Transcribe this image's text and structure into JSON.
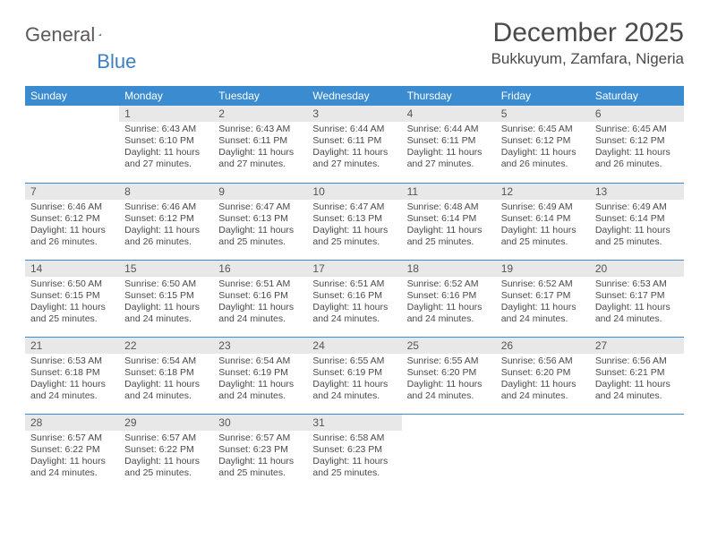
{
  "brand": {
    "part1": "General",
    "part2": "Blue"
  },
  "title": "December 2025",
  "location": "Bukkuyum, Zamfara, Nigeria",
  "colors": {
    "header_bg": "#3b8bd0",
    "header_fg": "#ffffff",
    "daynum_bg": "#e8e8e8",
    "rule": "#3b8bd0",
    "text": "#4a4a4a"
  },
  "fonts": {
    "title_size": 30,
    "location_size": 17,
    "dayhdr_size": 12,
    "cell_size": 10.5
  },
  "day_headers": [
    "Sunday",
    "Monday",
    "Tuesday",
    "Wednesday",
    "Thursday",
    "Friday",
    "Saturday"
  ],
  "weeks": [
    [
      null,
      {
        "n": "1",
        "sr": "Sunrise: 6:43 AM",
        "ss": "Sunset: 6:10 PM",
        "dl": "Daylight: 11 hours and 27 minutes."
      },
      {
        "n": "2",
        "sr": "Sunrise: 6:43 AM",
        "ss": "Sunset: 6:11 PM",
        "dl": "Daylight: 11 hours and 27 minutes."
      },
      {
        "n": "3",
        "sr": "Sunrise: 6:44 AM",
        "ss": "Sunset: 6:11 PM",
        "dl": "Daylight: 11 hours and 27 minutes."
      },
      {
        "n": "4",
        "sr": "Sunrise: 6:44 AM",
        "ss": "Sunset: 6:11 PM",
        "dl": "Daylight: 11 hours and 27 minutes."
      },
      {
        "n": "5",
        "sr": "Sunrise: 6:45 AM",
        "ss": "Sunset: 6:12 PM",
        "dl": "Daylight: 11 hours and 26 minutes."
      },
      {
        "n": "6",
        "sr": "Sunrise: 6:45 AM",
        "ss": "Sunset: 6:12 PM",
        "dl": "Daylight: 11 hours and 26 minutes."
      }
    ],
    [
      {
        "n": "7",
        "sr": "Sunrise: 6:46 AM",
        "ss": "Sunset: 6:12 PM",
        "dl": "Daylight: 11 hours and 26 minutes."
      },
      {
        "n": "8",
        "sr": "Sunrise: 6:46 AM",
        "ss": "Sunset: 6:12 PM",
        "dl": "Daylight: 11 hours and 26 minutes."
      },
      {
        "n": "9",
        "sr": "Sunrise: 6:47 AM",
        "ss": "Sunset: 6:13 PM",
        "dl": "Daylight: 11 hours and 25 minutes."
      },
      {
        "n": "10",
        "sr": "Sunrise: 6:47 AM",
        "ss": "Sunset: 6:13 PM",
        "dl": "Daylight: 11 hours and 25 minutes."
      },
      {
        "n": "11",
        "sr": "Sunrise: 6:48 AM",
        "ss": "Sunset: 6:14 PM",
        "dl": "Daylight: 11 hours and 25 minutes."
      },
      {
        "n": "12",
        "sr": "Sunrise: 6:49 AM",
        "ss": "Sunset: 6:14 PM",
        "dl": "Daylight: 11 hours and 25 minutes."
      },
      {
        "n": "13",
        "sr": "Sunrise: 6:49 AM",
        "ss": "Sunset: 6:14 PM",
        "dl": "Daylight: 11 hours and 25 minutes."
      }
    ],
    [
      {
        "n": "14",
        "sr": "Sunrise: 6:50 AM",
        "ss": "Sunset: 6:15 PM",
        "dl": "Daylight: 11 hours and 25 minutes."
      },
      {
        "n": "15",
        "sr": "Sunrise: 6:50 AM",
        "ss": "Sunset: 6:15 PM",
        "dl": "Daylight: 11 hours and 24 minutes."
      },
      {
        "n": "16",
        "sr": "Sunrise: 6:51 AM",
        "ss": "Sunset: 6:16 PM",
        "dl": "Daylight: 11 hours and 24 minutes."
      },
      {
        "n": "17",
        "sr": "Sunrise: 6:51 AM",
        "ss": "Sunset: 6:16 PM",
        "dl": "Daylight: 11 hours and 24 minutes."
      },
      {
        "n": "18",
        "sr": "Sunrise: 6:52 AM",
        "ss": "Sunset: 6:16 PM",
        "dl": "Daylight: 11 hours and 24 minutes."
      },
      {
        "n": "19",
        "sr": "Sunrise: 6:52 AM",
        "ss": "Sunset: 6:17 PM",
        "dl": "Daylight: 11 hours and 24 minutes."
      },
      {
        "n": "20",
        "sr": "Sunrise: 6:53 AM",
        "ss": "Sunset: 6:17 PM",
        "dl": "Daylight: 11 hours and 24 minutes."
      }
    ],
    [
      {
        "n": "21",
        "sr": "Sunrise: 6:53 AM",
        "ss": "Sunset: 6:18 PM",
        "dl": "Daylight: 11 hours and 24 minutes."
      },
      {
        "n": "22",
        "sr": "Sunrise: 6:54 AM",
        "ss": "Sunset: 6:18 PM",
        "dl": "Daylight: 11 hours and 24 minutes."
      },
      {
        "n": "23",
        "sr": "Sunrise: 6:54 AM",
        "ss": "Sunset: 6:19 PM",
        "dl": "Daylight: 11 hours and 24 minutes."
      },
      {
        "n": "24",
        "sr": "Sunrise: 6:55 AM",
        "ss": "Sunset: 6:19 PM",
        "dl": "Daylight: 11 hours and 24 minutes."
      },
      {
        "n": "25",
        "sr": "Sunrise: 6:55 AM",
        "ss": "Sunset: 6:20 PM",
        "dl": "Daylight: 11 hours and 24 minutes."
      },
      {
        "n": "26",
        "sr": "Sunrise: 6:56 AM",
        "ss": "Sunset: 6:20 PM",
        "dl": "Daylight: 11 hours and 24 minutes."
      },
      {
        "n": "27",
        "sr": "Sunrise: 6:56 AM",
        "ss": "Sunset: 6:21 PM",
        "dl": "Daylight: 11 hours and 24 minutes."
      }
    ],
    [
      {
        "n": "28",
        "sr": "Sunrise: 6:57 AM",
        "ss": "Sunset: 6:22 PM",
        "dl": "Daylight: 11 hours and 24 minutes."
      },
      {
        "n": "29",
        "sr": "Sunrise: 6:57 AM",
        "ss": "Sunset: 6:22 PM",
        "dl": "Daylight: 11 hours and 25 minutes."
      },
      {
        "n": "30",
        "sr": "Sunrise: 6:57 AM",
        "ss": "Sunset: 6:23 PM",
        "dl": "Daylight: 11 hours and 25 minutes."
      },
      {
        "n": "31",
        "sr": "Sunrise: 6:58 AM",
        "ss": "Sunset: 6:23 PM",
        "dl": "Daylight: 11 hours and 25 minutes."
      },
      null,
      null,
      null
    ]
  ]
}
